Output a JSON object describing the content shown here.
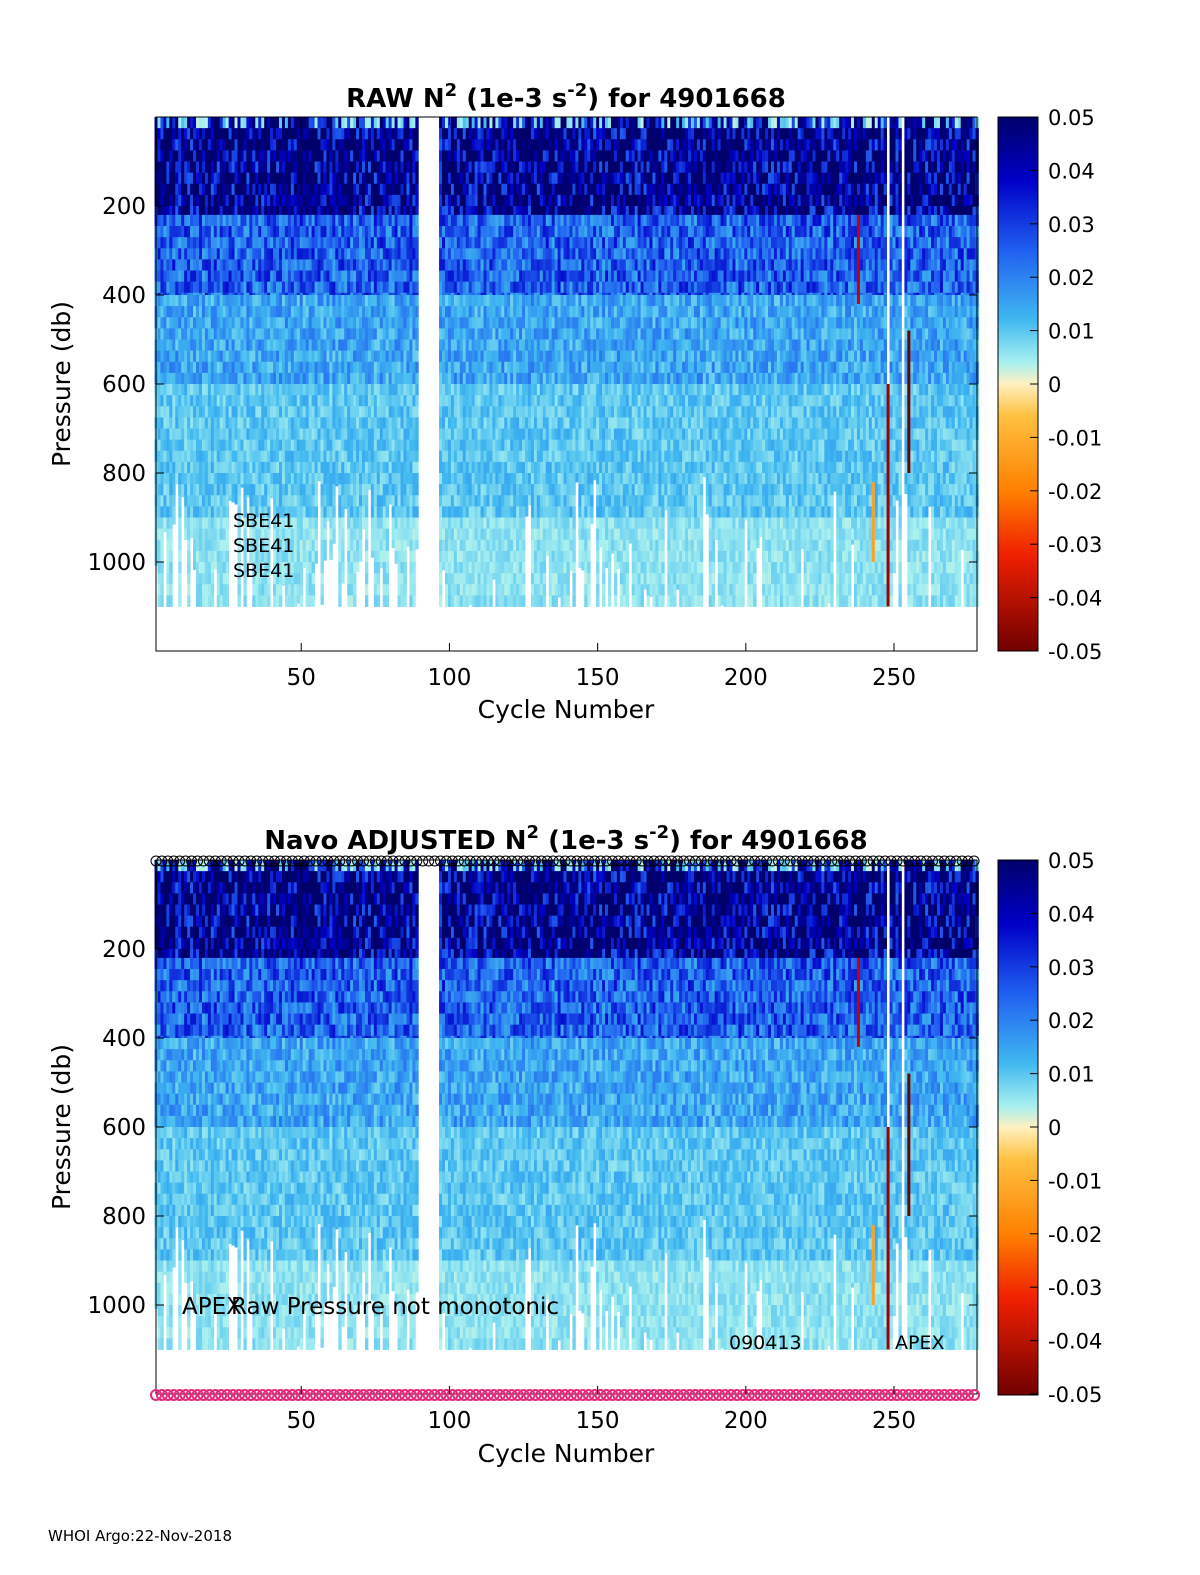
{
  "footer": "WHOI Argo:22-Nov-2018",
  "colorbar": {
    "ticks": [
      "0.05",
      "0.04",
      "0.03",
      "0.02",
      "0.01",
      "0",
      "-0.01",
      "-0.02",
      "-0.03",
      "-0.04",
      "-0.05"
    ],
    "range": [
      -0.05,
      0.05
    ]
  },
  "colors": {
    "deep_blue": "#0a0f8a",
    "mid_blue": "#2f6fe0",
    "light_blue": "#7fd3f4",
    "pale_cyan": "#c8f5f3",
    "qc_circle": "#e8287a"
  },
  "chart_data": [
    {
      "type": "heatmap",
      "title_pre": "RAW N",
      "title_sup1": "2",
      "title_mid": " (1e-3 s",
      "title_sup2": "-2",
      "title_post": ") for 4901668",
      "xlabel": "Cycle Number",
      "ylabel": "Pressure (db)",
      "xlim": [
        1,
        278
      ],
      "ylim": [
        1200,
        0
      ],
      "xticks": [
        "50",
        "100",
        "150",
        "200",
        "250"
      ],
      "xtick_values": [
        50,
        100,
        150,
        200,
        250
      ],
      "yticks": [
        "200",
        "400",
        "600",
        "800",
        "1000"
      ],
      "ytick_values": [
        200,
        400,
        600,
        800,
        1000
      ],
      "annotations": [
        "SBE41",
        "SBE41",
        "SBE41"
      ],
      "pressure_layers": [
        {
          "p_top": 0,
          "p_bottom": 220,
          "value": 0.045
        },
        {
          "p_top": 220,
          "p_bottom": 400,
          "value": 0.025
        },
        {
          "p_top": 400,
          "p_bottom": 600,
          "value": 0.015
        },
        {
          "p_top": 600,
          "p_bottom": 900,
          "value": 0.01
        },
        {
          "p_top": 900,
          "p_bottom": 1100,
          "value": 0.006
        }
      ],
      "gap_cycles": [
        90,
        91,
        92,
        93,
        94,
        95,
        96,
        248,
        253
      ]
    },
    {
      "type": "heatmap",
      "title_pre": "Navo  ADJUSTED N",
      "title_sup1": "2",
      "title_mid": " (1e-3 s",
      "title_sup2": "-2",
      "title_post": ") for 4901668",
      "xlabel": "Cycle Number",
      "ylabel": "Pressure (db)",
      "xlim": [
        1,
        278
      ],
      "ylim": [
        1200,
        0
      ],
      "xticks": [
        "50",
        "100",
        "150",
        "200",
        "250"
      ],
      "xtick_values": [
        50,
        100,
        150,
        200,
        250
      ],
      "yticks": [
        "200",
        "400",
        "600",
        "800",
        "1000"
      ],
      "ytick_values": [
        200,
        400,
        600,
        800,
        1000
      ],
      "annotations": [
        "APEX",
        "Raw Pressure not monotonic",
        "090413",
        "APEX"
      ],
      "pressure_layers": [
        {
          "p_top": 0,
          "p_bottom": 220,
          "value": 0.045
        },
        {
          "p_top": 220,
          "p_bottom": 400,
          "value": 0.025
        },
        {
          "p_top": 400,
          "p_bottom": 600,
          "value": 0.015
        },
        {
          "p_top": 600,
          "p_bottom": 900,
          "value": 0.01
        },
        {
          "p_top": 900,
          "p_bottom": 1100,
          "value": 0.006
        }
      ],
      "gap_cycles": [
        90,
        91,
        92,
        93,
        94,
        95,
        96,
        248,
        253
      ]
    }
  ]
}
